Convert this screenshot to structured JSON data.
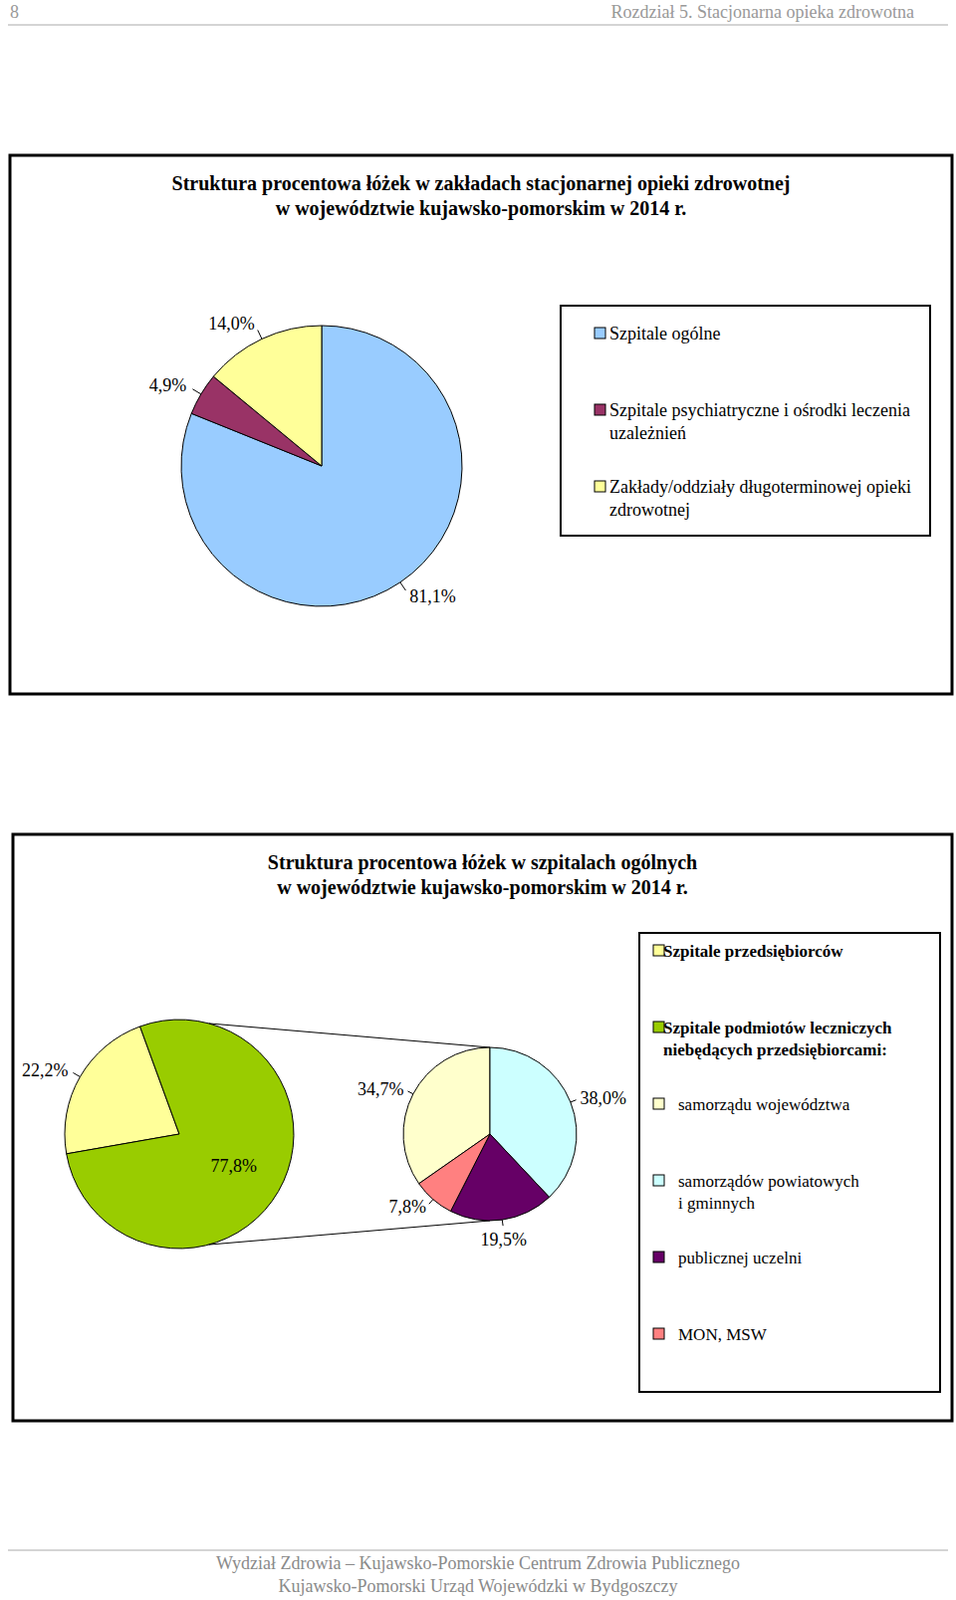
{
  "header": {
    "page_number": 8,
    "section": "Rozdział 5. Stacjonarna opieka zdrowotna"
  },
  "chart_data": [
    {
      "type": "pie",
      "title": [
        "Struktura procentowa łóżek w zakładach stacjonarnej opieki zdrowotnej",
        "w województwie kujawsko-pomorskim w 2014 r."
      ],
      "categories": [
        "Szpitale ogólne",
        "Szpitale psychiatryczne i ośrodki leczenia uzależnień",
        "Zakłady/oddziały długoterminowej opieki zdrowotnej"
      ],
      "values": [
        81.1,
        4.9,
        14.0
      ],
      "value_labels": [
        "81,1%",
        "4,9%",
        "14,0%"
      ],
      "colors": [
        "#99ccff",
        "#993366",
        "#ffff99"
      ],
      "data_labels": true,
      "legend": "right"
    },
    {
      "type": "pie",
      "title": [
        "Struktura procentowa łóżek w szpitalach ogólnych",
        "w województwie kujawsko-pomorskim w 2014 r."
      ],
      "categories": [
        "Szpitale przedsiębiorców",
        "Szpitale podmiotów leczniczych niebędących przedsiębiorcami:"
      ],
      "values": [
        22.2,
        77.8
      ],
      "value_labels": [
        "22,2%",
        "77,8%"
      ],
      "colors": [
        "#ffff99",
        "#99cc00"
      ],
      "data_labels": true,
      "legend": "right",
      "breakdown": {
        "categories": [
          "samorządu województwa",
          "samorządów powiatowych i gminnych",
          "publicznej uczelni",
          "MON, MSW"
        ],
        "values": [
          34.7,
          38.0,
          19.5,
          7.8
        ],
        "value_labels": [
          "34,7%",
          "38,0%",
          "19,5%",
          "7,8%"
        ],
        "colors": [
          "#ffffcc",
          "#ccffff",
          "#660066",
          "#ff8080"
        ]
      }
    }
  ],
  "footer": {
    "lines": [
      "Wydział Zdrowia – Kujawsko-Pomorskie Centrum Zdrowia Publicznego",
      "Kujawsko-Pomorski Urząd Wojewódzki w Bydgoszczy"
    ]
  }
}
